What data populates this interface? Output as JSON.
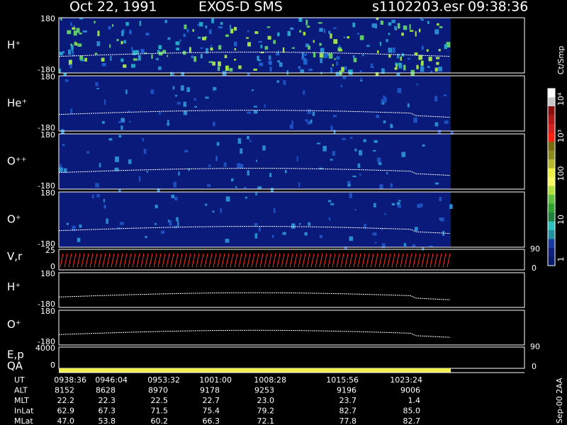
{
  "header": {
    "date": "Oct 22, 1991",
    "instrument": "EXOS-D SMS",
    "file": "s1102203.esr",
    "time": "09:38:36"
  },
  "panels": [
    {
      "label": "H⁺",
      "top": "180",
      "bottom": "-180"
    },
    {
      "label": "He⁺",
      "top": "180",
      "bottom": "-180"
    },
    {
      "label": "O⁺⁺",
      "top": "180",
      "bottom": "-180"
    },
    {
      "label": "O⁺",
      "top": "180",
      "bottom": "-180"
    },
    {
      "label": "V,r",
      "top": "25",
      "bottom": "0",
      "right_top": "90",
      "right_bottom": "0"
    },
    {
      "label": "H⁺",
      "top": "180",
      "bottom": "-180"
    },
    {
      "label": "O⁺",
      "top": "180",
      "bottom": "-180"
    },
    {
      "label": "E,p",
      "top": "4000",
      "bottom": "0",
      "right_top": "90",
      "right_bottom": "0"
    }
  ],
  "qa_label": "QA",
  "colorbar": {
    "title": "Ct/Smp",
    "labels": [
      "10⁴",
      "10³",
      "100",
      "10",
      "1"
    ]
  },
  "footer": "Sep-00 2AA",
  "table": {
    "rows": [
      [
        "UT",
        "0938:36",
        "0946:04",
        "0953:32",
        "1001:00",
        "1008:28",
        "1015:56",
        "1023:24"
      ],
      [
        "ALT",
        "8152",
        "8628",
        "8970",
        "9178",
        "9253",
        "9196",
        "9006"
      ],
      [
        "MLT",
        "22.2",
        "22.3",
        "22.5",
        "22.7",
        "23.0",
        "23.7",
        "1.4"
      ],
      [
        "InLat",
        "62.9",
        "67.3",
        "71.5",
        "75.4",
        "79.2",
        "82.7",
        "85.0"
      ],
      [
        "MLat",
        "47.0",
        "53.8",
        "60.2",
        "66.3",
        "72.1",
        "77.8",
        "82.7"
      ]
    ]
  }
}
